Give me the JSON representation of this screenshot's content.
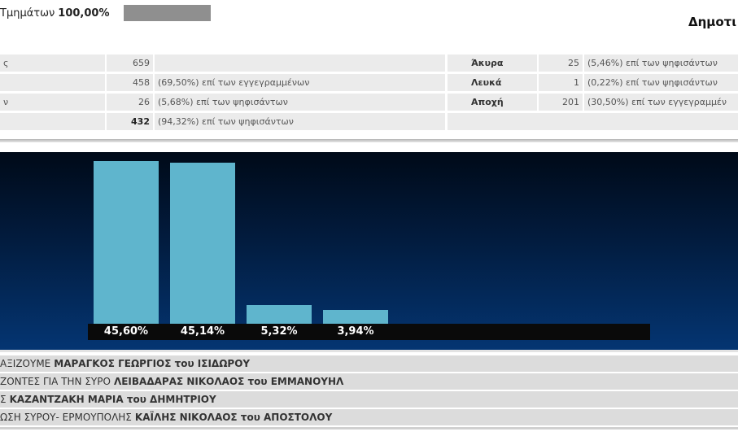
{
  "progress": {
    "label": "Τμημάτων",
    "percent_text": "100,00%",
    "fill_fraction": 1.0
  },
  "heading": "Δημοτι",
  "stats": {
    "left_rows": [
      {
        "label": "ς",
        "value": "659",
        "note": ""
      },
      {
        "label": "",
        "value": "458",
        "note": "(69,50%) επί των εγγεγραμμένων"
      },
      {
        "label": "ν",
        "value": "26",
        "note": "(5,68%) επί των ψηφισάντων"
      },
      {
        "label": "",
        "value": "432",
        "note": "(94,32%) επί των ψηφισάντων"
      }
    ],
    "right_rows": [
      {
        "label": "Άκυρα",
        "value": "25",
        "note": "(5,46%) επί των ψηφισάντων"
      },
      {
        "label": "Λευκά",
        "value": "1",
        "note": "(0,22%) επί των ψηφισάντων"
      },
      {
        "label": "Αποχή",
        "value": "201",
        "note": "(30,50%) επί των εγγεγραμμέν"
      }
    ]
  },
  "chart_data": {
    "type": "bar",
    "categories": [
      "ΜΑΡΑΓΚΟΣ ΓΕΩΡΓΙΟΣ",
      "ΛΕΙΒΑΔΑΡΑΣ ΝΙΚΟΛΑΟΣ",
      "ΚΑΖΑΝΤΖΑΚΗ ΜΑΡΙΑ",
      "ΚΑΪΛΗΣ ΝΙΚΟΛΑΟΣ"
    ],
    "values": [
      45.6,
      45.14,
      5.32,
      3.94
    ],
    "value_labels": [
      "45,60%",
      "45,14%",
      "5,32%",
      "3,94%"
    ],
    "bar_color": "#5fb5cd",
    "ylim": [
      0,
      45.6
    ]
  },
  "candidates": [
    {
      "prefix": "ΑΞΙΖΟΥΜΕ",
      "name": "ΜΑΡΑΓΚΟΣ ΓΕΩΡΓΙΟΣ του ΙΣΙΔΩΡΟΥ"
    },
    {
      "prefix": "ΖΟΝΤΕΣ ΓΙΑ ΤΗΝ ΣΥΡΟ",
      "name": "ΛΕΙΒΑΔΑΡΑΣ ΝΙΚΟΛΑΟΣ του ΕΜΜΑΝΟΥΗΛ"
    },
    {
      "prefix": "Σ",
      "name": "ΚΑΖΑΝΤΖΑΚΗ ΜΑΡΙΑ του ΔΗΜΗΤΡΙΟΥ"
    },
    {
      "prefix": "ΩΣΗ ΣΥΡΟΥ- ΕΡΜΟΥΠΟΛΗΣ",
      "name": "ΚΑΪΛΗΣ ΝΙΚΟΛΑΟΣ του ΑΠΟΣΤΟΛΟΥ"
    }
  ]
}
